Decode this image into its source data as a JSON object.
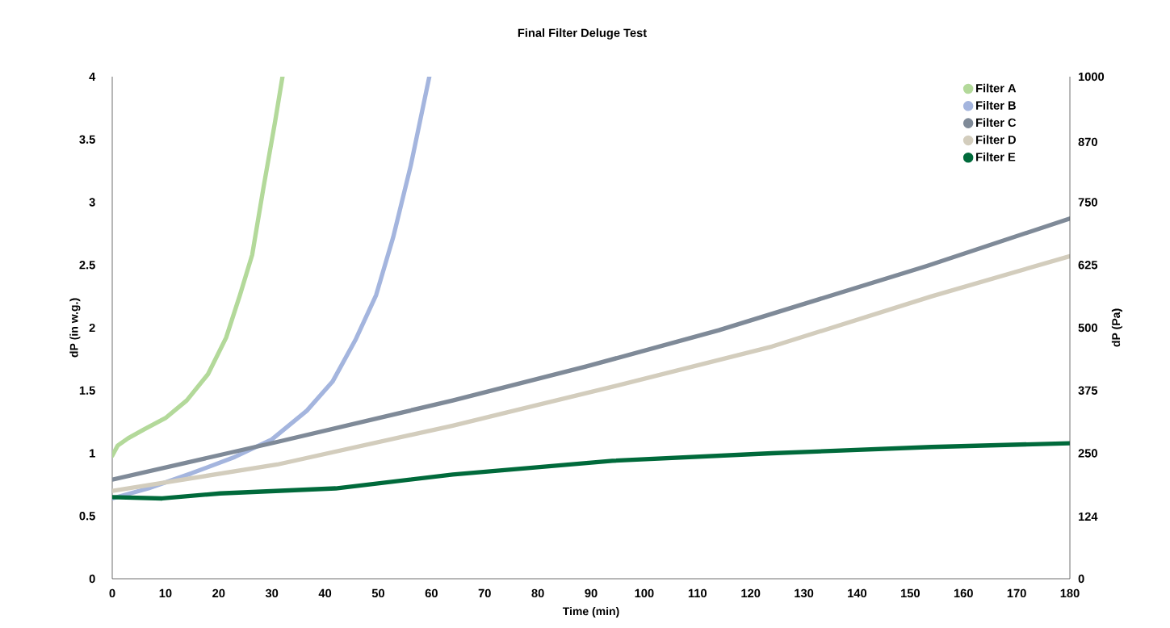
{
  "chart_data": {
    "type": "line",
    "title": "Final Filter Deluge Test",
    "xlabel": "Time (min)",
    "ylabel": "dP (in w.g.)",
    "y2label": "dP (Pa)",
    "xlim": [
      0,
      180
    ],
    "xticks": [
      0,
      10,
      20,
      30,
      40,
      50,
      60,
      70,
      80,
      90,
      100,
      110,
      120,
      130,
      140,
      150,
      160,
      170,
      180
    ],
    "ylim": [
      0,
      4
    ],
    "yticks": [
      0,
      0.5,
      1,
      1.5,
      2,
      2.5,
      3,
      3.5,
      4
    ],
    "y2lim": [
      0,
      1000
    ],
    "y2ticks": [
      0,
      124,
      250,
      375,
      500,
      625,
      750,
      870,
      1000
    ],
    "grid": false,
    "legend": "top right",
    "line_style": "solid",
    "series": [
      {
        "name": "Filter A",
        "color": "#b3d99a",
        "x": [
          0,
          1,
          3,
          6,
          10,
          14,
          18,
          21.4,
          24,
          26.3,
          28.4,
          30.6,
          32
        ],
        "values": [
          0.98,
          1.06,
          1.12,
          1.19,
          1.28,
          1.42,
          1.63,
          1.92,
          2.26,
          2.58,
          3.11,
          3.64,
          4.0
        ]
      },
      {
        "name": "Filter B",
        "color": "#a4b5de",
        "x": [
          0,
          6.8,
          14.9,
          23,
          30,
          36.6,
          41.4,
          45.8,
          49.6,
          52.8,
          56.1,
          59.6
        ],
        "values": [
          0.64,
          0.72,
          0.84,
          0.97,
          1.11,
          1.34,
          1.57,
          1.91,
          2.26,
          2.72,
          3.29,
          4.0
        ]
      },
      {
        "name": "Filter C",
        "color": "#7f8a98",
        "x": [
          0,
          31,
          64,
          89,
          114,
          153,
          180
        ],
        "values": [
          0.79,
          1.09,
          1.42,
          1.69,
          1.98,
          2.49,
          2.87
        ]
      },
      {
        "name": "Filter D",
        "color": "#d3cdbd",
        "x": [
          0,
          31,
          64,
          94,
          124,
          154,
          180
        ],
        "values": [
          0.7,
          0.91,
          1.22,
          1.53,
          1.85,
          2.25,
          2.57
        ]
      },
      {
        "name": "Filter E",
        "color": "#006a3b",
        "x": [
          0,
          9.4,
          20.3,
          42,
          64,
          94,
          124,
          154,
          180
        ],
        "values": [
          0.65,
          0.64,
          0.68,
          0.72,
          0.83,
          0.94,
          1.0,
          1.05,
          1.08
        ]
      }
    ]
  }
}
